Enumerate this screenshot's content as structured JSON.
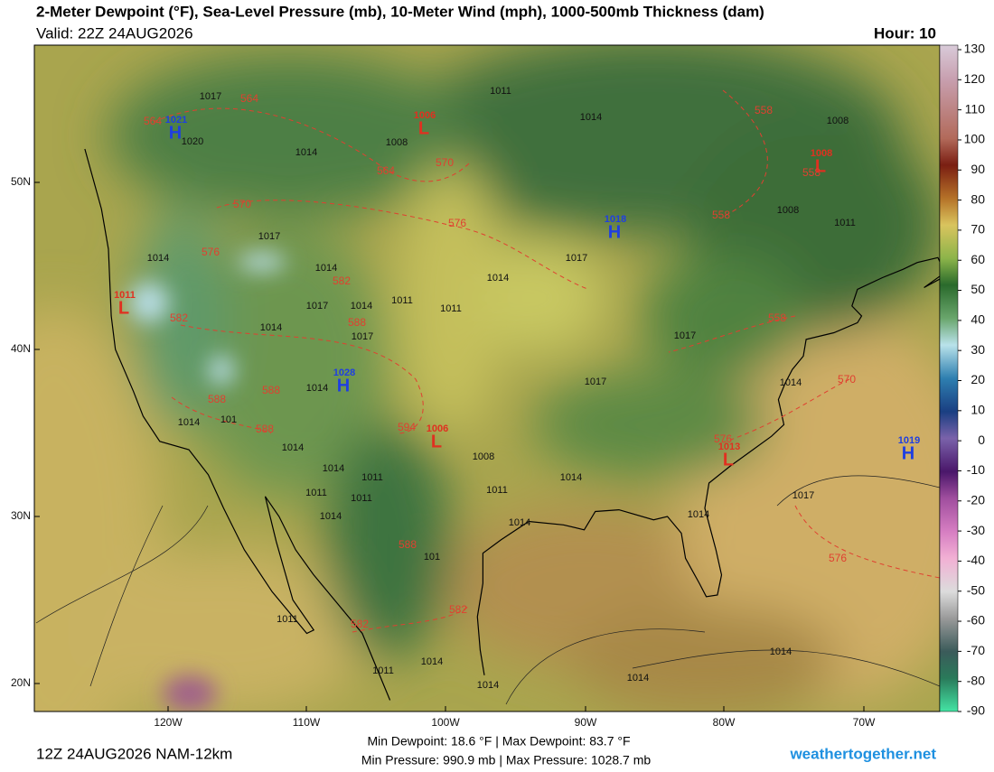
{
  "header": {
    "title": "2-Meter Dewpoint (°F), Sea-Level Pressure (mb), 10-Meter Wind (mph), 1000-500mb Thickness (dam)",
    "valid": "Valid: 22Z 24AUG2026",
    "hour": "Hour: 10"
  },
  "colorbar": {
    "range": [
      -90,
      130
    ],
    "ticks": [
      130,
      120,
      110,
      100,
      90,
      80,
      70,
      60,
      50,
      40,
      30,
      20,
      10,
      0,
      -10,
      -20,
      -30,
      -40,
      -50,
      -60,
      -70,
      -80,
      -90
    ]
  },
  "lat_labels": [
    "50N",
    "40N",
    "30N",
    "20N"
  ],
  "lon_labels": [
    "120W",
    "110W",
    "100W",
    "90W",
    "80W",
    "70W"
  ],
  "pressure_centers": [
    {
      "letter": "H",
      "value": "1021"
    },
    {
      "letter": "L",
      "value": "1006"
    },
    {
      "letter": "L",
      "value": "1008"
    },
    {
      "letter": "H",
      "value": "1018"
    },
    {
      "letter": "L",
      "value": "1011"
    },
    {
      "letter": "H",
      "value": "1028"
    },
    {
      "letter": "L",
      "value": "1006"
    },
    {
      "letter": "L",
      "value": "1013"
    },
    {
      "letter": "H",
      "value": "1019"
    }
  ],
  "isobar_labels": [
    "1017",
    "1020",
    "1014",
    "1008",
    "1011",
    "1014",
    "1008",
    "1008",
    "1011",
    "1017",
    "1014",
    "1014",
    "1014",
    "1011",
    "1011",
    "1017",
    "1014",
    "1017",
    "1017",
    "1014",
    "1017",
    "1017",
    "1014",
    "1014",
    "1014",
    "101",
    "1014",
    "1014",
    "1011",
    "1008",
    "1011",
    "1011",
    "1011",
    "1014",
    "1014",
    "1014",
    "1014",
    "1017",
    "1011",
    "1014",
    "1014",
    "1011",
    "1014",
    "1014",
    "101"
  ],
  "thickness_labels": [
    "564",
    "564",
    "564",
    "570",
    "558",
    "558",
    "558",
    "570",
    "576",
    "576",
    "582",
    "582",
    "588",
    "588",
    "588",
    "588",
    "594",
    "576",
    "558",
    "570",
    "576",
    "588",
    "582",
    "582"
  ],
  "footer": {
    "run": "12Z 24AUG2026 NAM-12km",
    "dewpoint": "Min Dewpoint:  18.6 °F | Max Dewpoint:  83.7 °F",
    "pressure": "Min Pressure: 990.9 mb | Max Pressure: 1028.7 mb",
    "site": "weathertogether.net"
  }
}
